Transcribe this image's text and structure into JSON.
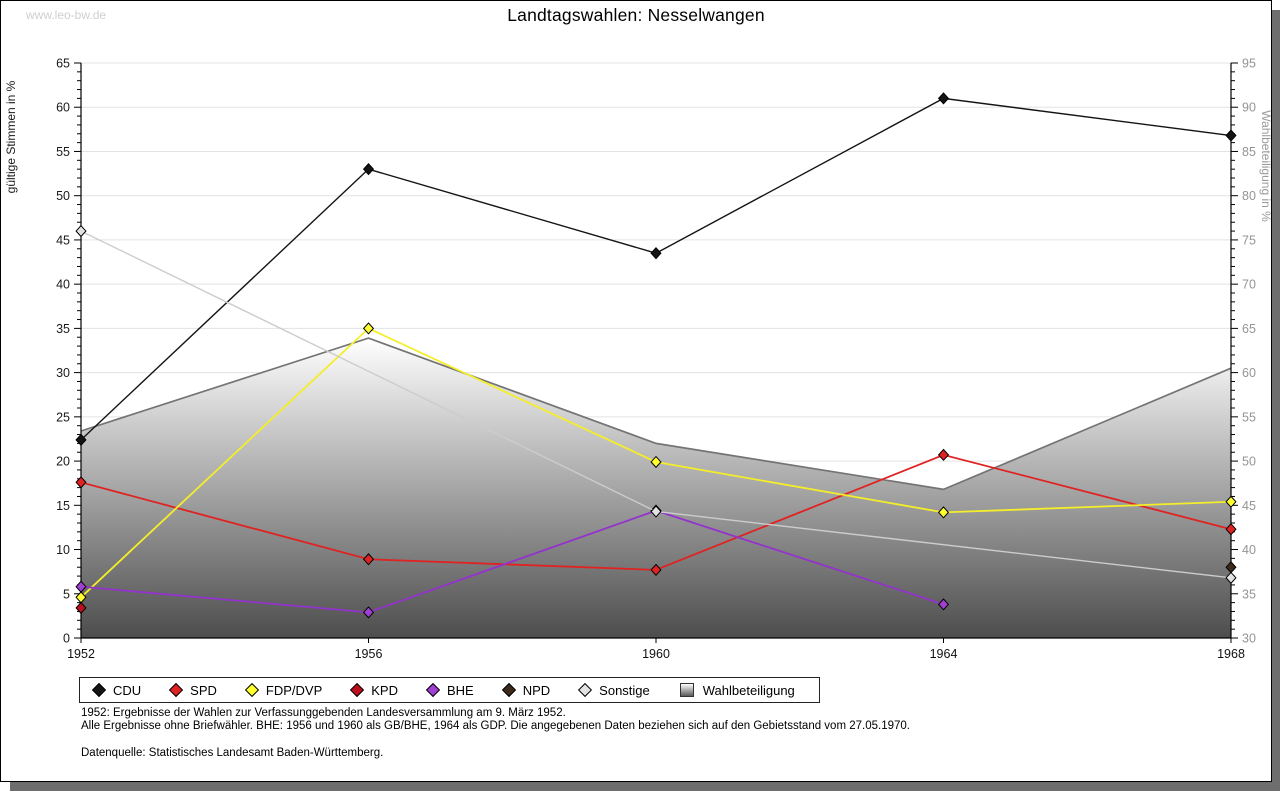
{
  "page": {
    "watermark": "www.leo-bw.de",
    "title": "Landtagswahlen: Nesselwangen"
  },
  "chart_data": {
    "type": "line",
    "x": [
      1952,
      1956,
      1960,
      1964,
      1968
    ],
    "x_labels": [
      "1952",
      "1956",
      "1960",
      "1964",
      "1968"
    ],
    "left_axis": {
      "label": "gültige Stimmen in %",
      "min": 0,
      "max": 65,
      "major_step": 5,
      "minor_step": 1,
      "color": "#1a1a1a"
    },
    "right_axis": {
      "label": "Wahlbeteiligung in %",
      "min": 30,
      "max": 95,
      "major_step": 5,
      "minor_step": 1,
      "color": "#949494"
    },
    "grid": true,
    "legend_position": "bottom",
    "area_series": {
      "name": "Wahlbeteiligung",
      "axis": "right",
      "values": [
        53.4,
        63.9,
        52.0,
        46.8,
        60.5
      ],
      "fill_top": "#ffffff",
      "fill_bottom": "#4d4d4d",
      "stroke": "#747474"
    },
    "series": [
      {
        "name": "CDU",
        "color": "#141414",
        "marker_fill": "#141414",
        "width": 1.4,
        "axis": "left",
        "values": [
          22.4,
          53.0,
          43.5,
          61.0,
          56.8
        ]
      },
      {
        "name": "SPD",
        "color": "#e02222",
        "marker_fill": "#e02222",
        "width": 1.8,
        "axis": "left",
        "values": [
          17.6,
          8.9,
          7.7,
          20.7,
          12.3
        ]
      },
      {
        "name": "FDP/DVP",
        "color": "#f4ee2a",
        "marker_fill": "#ffff2e",
        "width": 1.8,
        "axis": "left",
        "values": [
          4.6,
          35.0,
          19.9,
          14.2,
          15.4
        ]
      },
      {
        "name": "KPD",
        "color": "#bb0f1e",
        "marker_fill": "#bb0f1e",
        "width": 1.8,
        "axis": "left",
        "values": [
          3.4,
          null,
          null,
          null,
          null
        ]
      },
      {
        "name": "BHE",
        "color": "#9333cc",
        "marker_fill": "#a040d0",
        "width": 1.8,
        "axis": "left",
        "values": [
          5.8,
          2.9,
          14.4,
          3.8,
          null
        ]
      },
      {
        "name": "NPD",
        "color": "#3e2a1a",
        "marker_fill": "#3e2a1a",
        "width": 1.8,
        "axis": "left",
        "values": [
          null,
          null,
          null,
          null,
          8.0
        ]
      },
      {
        "name": "Sonstige",
        "color": "#cccccc",
        "marker_fill": "#e2e2e2",
        "width": 1.4,
        "axis": "left",
        "values": [
          46.0,
          null,
          14.3,
          null,
          6.8
        ]
      }
    ]
  },
  "legend": {
    "items": [
      {
        "label": "CDU",
        "kind": "diamond",
        "color": "#141414"
      },
      {
        "label": "SPD",
        "kind": "diamond",
        "color": "#e02222"
      },
      {
        "label": "FDP/DVP",
        "kind": "diamond",
        "color": "#ffff2e"
      },
      {
        "label": "KPD",
        "kind": "diamond",
        "color": "#bb0f1e"
      },
      {
        "label": "BHE",
        "kind": "diamond",
        "color": "#a040d0"
      },
      {
        "label": "NPD",
        "kind": "diamond",
        "color": "#3e2a1a"
      },
      {
        "label": "Sonstige",
        "kind": "diamond",
        "color": "#e2e2e2"
      },
      {
        "label": "Wahlbeteiligung",
        "kind": "area",
        "color": "#9a9a9a"
      }
    ]
  },
  "footer": {
    "line1": "1952: Ergebnisse der Wahlen zur Verfassunggebenden Landesversammlung am 9. März 1952.",
    "line2": "Alle Ergebnisse ohne Briefwähler. BHE: 1956 und 1960 als GB/BHE, 1964 als GDP. Die angegebenen Daten beziehen sich auf den Gebietsstand vom 27.05.1970.",
    "line3": "Datenquelle: Statistisches Landesamt Baden-Württemberg."
  }
}
